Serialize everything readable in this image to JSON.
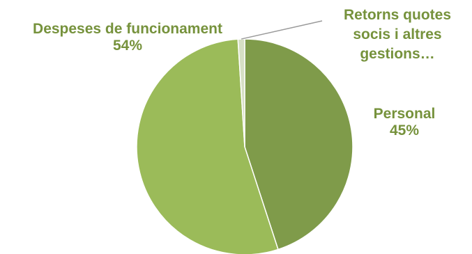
{
  "chart_data": {
    "type": "pie",
    "title": "",
    "slices": [
      {
        "name": "Personal",
        "value": 45,
        "percent_label": "45%",
        "color": "#7f9b4a"
      },
      {
        "name": "Despeses de funcionament",
        "value": 54,
        "percent_label": "54%",
        "color": "#9bbb59"
      },
      {
        "name": "Retorns quotes socis i altres gestions…",
        "value": 1,
        "percent_label": "",
        "color": "#d6dfc4"
      }
    ],
    "label_color": "#76923c",
    "leader_line_color": "#9a9a9a",
    "legend": "none"
  },
  "labels": {
    "personal": {
      "name": "Personal",
      "percent": "45%"
    },
    "despeses": {
      "name": "Despeses de funcionament",
      "percent": "54%"
    },
    "retorns": {
      "line1": "Retorns quotes",
      "line2": "socis i altres",
      "line3": "gestions…"
    }
  }
}
